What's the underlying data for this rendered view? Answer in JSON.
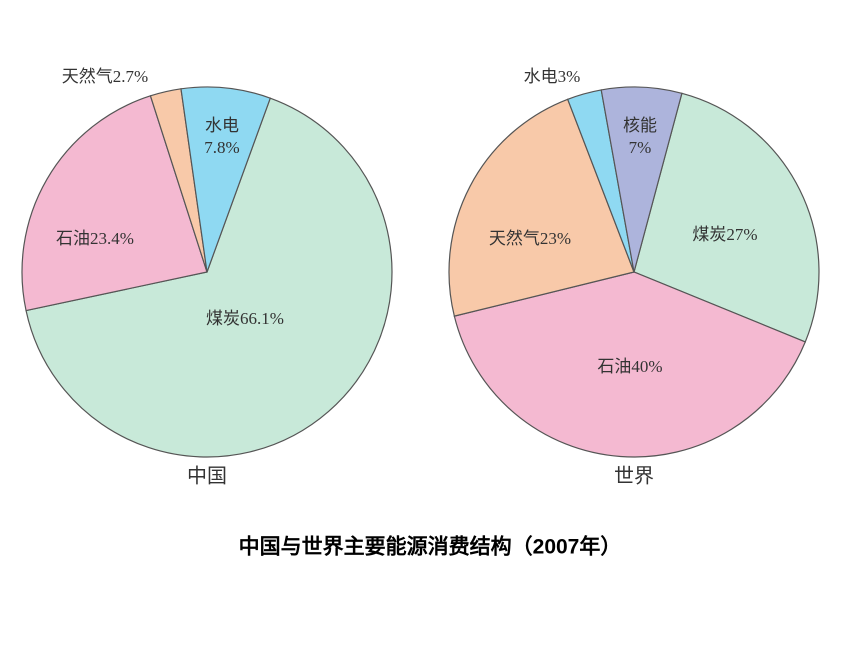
{
  "title": "中国与世界主要能源消费结构（2007年）",
  "chart_data": [
    {
      "type": "pie",
      "title": "中国",
      "categories": [
        "煤炭",
        "石油",
        "天然气",
        "水电"
      ],
      "values": [
        66.1,
        23.4,
        2.7,
        7.8
      ],
      "value_labels": [
        "66.1%",
        "23.4%",
        "2.7%",
        "7.8%"
      ],
      "colors": [
        "#c8e9d9",
        "#f4b9d1",
        "#f8c9a9",
        "#8fd9f2"
      ]
    },
    {
      "type": "pie",
      "title": "世界",
      "categories": [
        "煤炭",
        "石油",
        "天然气",
        "水电",
        "核能"
      ],
      "values": [
        27,
        40,
        23,
        3,
        7
      ],
      "value_labels": [
        "27%",
        "40%",
        "23%",
        "3%",
        "7%"
      ],
      "colors": [
        "#c8e9d9",
        "#f4b9d1",
        "#f8c9a9",
        "#8fd9f2",
        "#adb4dc"
      ]
    }
  ]
}
